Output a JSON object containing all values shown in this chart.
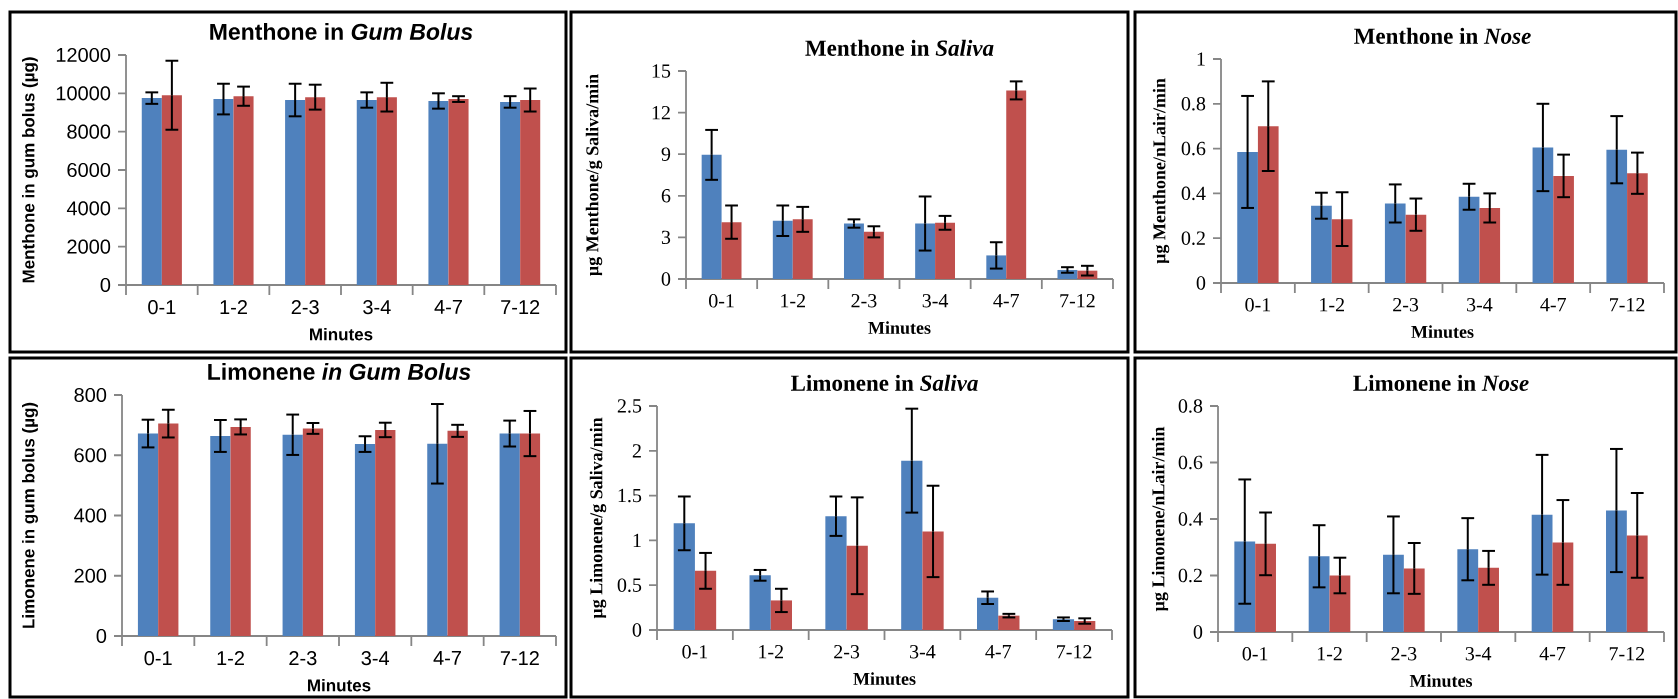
{
  "chart_data": [
    {
      "type": "bar",
      "title": "Menthone in *Gum Bolus*",
      "xlabel": "Minutes",
      "ylabel": "Menthone in gum bolus (µg)",
      "categories": [
        "0-1",
        "1-2",
        "2-3",
        "3-4",
        "4-7",
        "7-12"
      ],
      "ylim": [
        0,
        12000
      ],
      "yticks": [
        0,
        2000,
        4000,
        6000,
        8000,
        10000,
        12000
      ],
      "series": [
        {
          "color": "#4f81bd",
          "values": [
            9750,
            9700,
            9650,
            9650,
            9600,
            9550
          ],
          "errors": [
            300,
            800,
            850,
            400,
            400,
            300
          ]
        },
        {
          "color": "#c0504d",
          "values": [
            9900,
            9850,
            9800,
            9800,
            9700,
            9650
          ],
          "errors": [
            1800,
            500,
            650,
            750,
            150,
            600
          ]
        }
      ]
    },
    {
      "type": "bar",
      "title": "Menthone in *Saliva*",
      "xlabel": "Minutes",
      "ylabel": "µg Menthone/g Saliva/min",
      "categories": [
        "0-1",
        "1-2",
        "2-3",
        "3-4",
        "4-7",
        "7-12"
      ],
      "ylim": [
        0,
        15
      ],
      "yticks": [
        0,
        3,
        6,
        9,
        12,
        15
      ],
      "series": [
        {
          "color": "#4f81bd",
          "values": [
            8.95,
            4.2,
            4.0,
            4.0,
            1.7,
            0.65
          ],
          "errors": [
            1.8,
            1.1,
            0.3,
            1.95,
            0.95,
            0.2
          ]
        },
        {
          "color": "#c0504d",
          "values": [
            4.1,
            4.3,
            3.4,
            4.05,
            13.6,
            0.6
          ],
          "errors": [
            1.2,
            0.9,
            0.4,
            0.5,
            0.65,
            0.35
          ]
        }
      ]
    },
    {
      "type": "bar",
      "title": "Menthone in *Nose*",
      "xlabel": "Minutes",
      "ylabel": "µg Menthone/nLair/min",
      "categories": [
        "0-1",
        "1-2",
        "2-3",
        "3-4",
        "4-7",
        "7-12"
      ],
      "ylim": [
        0,
        1
      ],
      "yticks": [
        0,
        0.2,
        0.4,
        0.6,
        0.8,
        1
      ],
      "series": [
        {
          "color": "#4f81bd",
          "values": [
            0.585,
            0.345,
            0.355,
            0.385,
            0.605,
            0.595
          ],
          "errors": [
            0.25,
            0.058,
            0.085,
            0.058,
            0.195,
            0.15
          ]
        },
        {
          "color": "#c0504d",
          "values": [
            0.7,
            0.285,
            0.305,
            0.335,
            0.478,
            0.49
          ],
          "errors": [
            0.2,
            0.12,
            0.072,
            0.065,
            0.095,
            0.092
          ]
        }
      ]
    },
    {
      "type": "bar",
      "title": "Limonene *in Gum Bolus*",
      "xlabel": "Minutes",
      "ylabel": "Limonene in gum bolus (µg)",
      "categories": [
        "0-1",
        "1-2",
        "2-3",
        "3-4",
        "4-7",
        "7-12"
      ],
      "ylim": [
        0,
        800
      ],
      "yticks": [
        0,
        200,
        400,
        600,
        800
      ],
      "series": [
        {
          "color": "#4f81bd",
          "values": [
            672,
            664,
            668,
            637,
            638,
            672
          ],
          "errors": [
            46,
            53,
            67,
            26,
            132,
            43
          ]
        },
        {
          "color": "#c0504d",
          "values": [
            705,
            694,
            689,
            684,
            681,
            672
          ],
          "errors": [
            46,
            25,
            18,
            24,
            20,
            75
          ]
        }
      ]
    },
    {
      "type": "bar",
      "title": "Limonene in *Saliva*",
      "xlabel": "Minutes",
      "ylabel": "µg Limonene/g Saliva/min",
      "categories": [
        "0-1",
        "1-2",
        "2-3",
        "3-4",
        "4-7",
        "7-12"
      ],
      "ylim": [
        0,
        2.5
      ],
      "yticks": [
        0,
        0.5,
        1,
        1.5,
        2,
        2.5
      ],
      "series": [
        {
          "color": "#4f81bd",
          "values": [
            1.19,
            0.61,
            1.27,
            1.89,
            0.36,
            0.12
          ],
          "errors": [
            0.3,
            0.06,
            0.22,
            0.58,
            0.07,
            0.02
          ]
        },
        {
          "color": "#c0504d",
          "values": [
            0.66,
            0.33,
            0.94,
            1.1,
            0.16,
            0.1
          ],
          "errors": [
            0.2,
            0.13,
            0.54,
            0.51,
            0.02,
            0.03
          ]
        }
      ]
    },
    {
      "type": "bar",
      "title": "Limonene in *Nose*",
      "xlabel": "Minutes",
      "ylabel": "µg Limonene/nLair/min",
      "categories": [
        "0-1",
        "1-2",
        "2-3",
        "3-4",
        "4-7",
        "7-12"
      ],
      "ylim": [
        0,
        0.8
      ],
      "yticks": [
        0,
        0.2,
        0.4,
        0.6,
        0.8
      ],
      "series": [
        {
          "color": "#4f81bd",
          "values": [
            0.32,
            0.268,
            0.273,
            0.293,
            0.415,
            0.43
          ],
          "errors": [
            0.22,
            0.11,
            0.136,
            0.11,
            0.212,
            0.218
          ]
        },
        {
          "color": "#c0504d",
          "values": [
            0.312,
            0.2,
            0.225,
            0.227,
            0.317,
            0.342
          ],
          "errors": [
            0.111,
            0.063,
            0.09,
            0.06,
            0.15,
            0.15
          ]
        }
      ]
    }
  ]
}
